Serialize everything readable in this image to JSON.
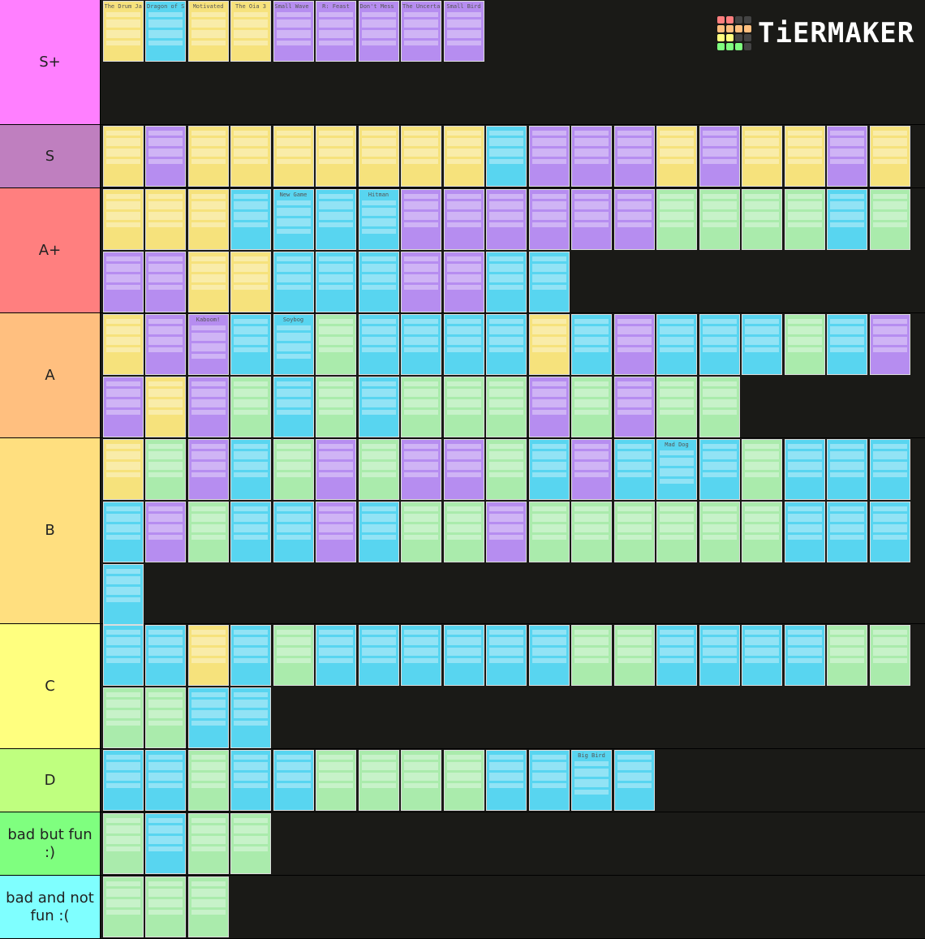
{
  "logo": {
    "text": "TiERMAKER"
  },
  "colors": {
    "Y": "#f6e27c",
    "C": "#58d5f0",
    "P": "#b68df0",
    "G": "#aaebac"
  },
  "tiers": [
    {
      "label": "S+",
      "color": "#ff7fff",
      "height": 154,
      "cards": "YCYYPPPPP",
      "titles": [
        "The Drum Jams",
        "Dragon of Shadow",
        "Motivated",
        "The Oia 3",
        "Small Wave of Soul",
        "R: Feast",
        "Don't Mess Me",
        "The Uncertain Truth",
        "Small Bird"
      ]
    },
    {
      "label": "S",
      "color": "#bf7fbf",
      "height": 78,
      "cards": "YPYYYYYYYCPPPYPYYPY",
      "titles": []
    },
    {
      "label": "A+",
      "color": "#ff7f7f",
      "height": 154,
      "cards": "YYYCCCCPPPPPPGGGGCGPPYYCCCPPCC",
      "titles": [
        "",
        "",
        "",
        "",
        "New Game",
        "",
        "Hitman"
      ]
    },
    {
      "label": "A",
      "color": "#ffbf7f",
      "height": 154,
      "cards": "YPPCCGCCCCYCPCCCGCPPYPGCGCGGGPGPGG",
      "titles": [
        "",
        "",
        "Kaboom!",
        "",
        "Soybog"
      ]
    },
    {
      "label": "B",
      "color": "#ffdf7f",
      "height": 229,
      "cards": "YGPCGPGPPGCPCCCGCCCCPGCCPCGGPGGGGGGCCCC",
      "titles": [
        "",
        "",
        "",
        "",
        "",
        "",
        "",
        "",
        "",
        "",
        "",
        "",
        "",
        "Mad Dog"
      ]
    },
    {
      "label": "C",
      "color": "#ffff7f",
      "height": 154,
      "cards": "CCYCGCCCCCCGGCCCCGGGGCC",
      "titles": []
    },
    {
      "label": "D",
      "color": "#bfff7f",
      "height": 78,
      "cards": "CCGCCGGGGCCCC",
      "titles": [
        "",
        "",
        "",
        "",
        "",
        "",
        "",
        "",
        "",
        "",
        "",
        "Big Bird"
      ]
    },
    {
      "label": "bad but fun :)",
      "color": "#7fff7f",
      "height": 78,
      "cards": "GCGG",
      "titles": []
    },
    {
      "label": "bad and not fun :(",
      "color": "#7fffff",
      "height": 78,
      "cards": "GGG",
      "titles": []
    }
  ]
}
